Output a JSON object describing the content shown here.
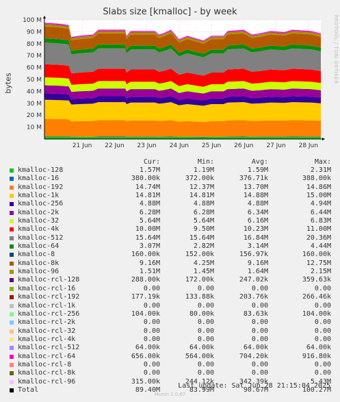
{
  "chart_data": {
    "type": "area",
    "title": "Slabs size [kmalloc] - by week",
    "ylabel": "bytes",
    "ylim": [
      0,
      100000000
    ],
    "y_ticks": [
      "10 M",
      "20 M",
      "30 M",
      "40 M",
      "50 M",
      "60 M",
      "70 M",
      "80 M",
      "90 M",
      "100 M"
    ],
    "x_ticks": [
      "21 Jun",
      "22 Jun",
      "23 Jun",
      "24 Jun",
      "25 Jun",
      "26 Jun",
      "27 Jun",
      "28 Jun"
    ],
    "x_range": [
      "2025-06-20T08:00",
      "2025-06-28T21:15"
    ],
    "grid": true,
    "watermark": "RRDTOOL / TOBI OETIKER",
    "legend_headers": [
      "Cur:",
      "Min:",
      "Avg:",
      "Max:"
    ],
    "series": [
      {
        "name": "kmalloc-128",
        "color": "#00cc00",
        "cur": "1.57M",
        "min": "1.19M",
        "avg": "1.59M",
        "max": "2.31M",
        "val": 1.59
      },
      {
        "name": "kmalloc-16",
        "color": "#0066b3",
        "cur": "380.00k",
        "min": "372.00k",
        "avg": "376.71k",
        "max": "388.00k",
        "val": 0.38
      },
      {
        "name": "kmalloc-192",
        "color": "#ff8000",
        "cur": "14.74M",
        "min": "12.37M",
        "avg": "13.70M",
        "max": "14.86M",
        "val": 13.7
      },
      {
        "name": "kmalloc-1k",
        "color": "#ffcc00",
        "cur": "14.81M",
        "min": "14.81M",
        "avg": "14.88M",
        "max": "15.00M",
        "val": 14.88
      },
      {
        "name": "kmalloc-256",
        "color": "#330099",
        "cur": "4.88M",
        "min": "4.88M",
        "avg": "4.88M",
        "max": "4.94M",
        "val": 4.88
      },
      {
        "name": "kmalloc-2k",
        "color": "#990099",
        "cur": "6.28M",
        "min": "6.28M",
        "avg": "6.34M",
        "max": "6.44M",
        "val": 6.34
      },
      {
        "name": "kmalloc-32",
        "color": "#ccff00",
        "cur": "5.64M",
        "min": "5.64M",
        "avg": "6.16M",
        "max": "6.83M",
        "val": 6.16
      },
      {
        "name": "kmalloc-4k",
        "color": "#ff0000",
        "cur": "10.00M",
        "min": "9.50M",
        "avg": "10.23M",
        "max": "11.00M",
        "val": 10.23
      },
      {
        "name": "kmalloc-512",
        "color": "#808080",
        "cur": "15.64M",
        "min": "15.64M",
        "avg": "16.84M",
        "max": "20.36M",
        "val": 16.84
      },
      {
        "name": "kmalloc-64",
        "color": "#008f00",
        "cur": "3.07M",
        "min": "2.82M",
        "avg": "3.14M",
        "max": "4.44M",
        "val": 3.14
      },
      {
        "name": "kmalloc-8",
        "color": "#00487d",
        "cur": "160.00k",
        "min": "152.00k",
        "avg": "156.97k",
        "max": "160.00k",
        "val": 0.16
      },
      {
        "name": "kmalloc-8k",
        "color": "#b35a00",
        "cur": "9.16M",
        "min": "4.25M",
        "avg": "9.16M",
        "max": "12.75M",
        "val": 9.16
      },
      {
        "name": "kmalloc-96",
        "color": "#b38f00",
        "cur": "1.51M",
        "min": "1.45M",
        "avg": "1.64M",
        "max": "2.15M",
        "val": 1.64
      },
      {
        "name": "kmalloc-rcl-128",
        "color": "#6b006b",
        "cur": "288.00k",
        "min": "172.00k",
        "avg": "247.02k",
        "max": "359.63k",
        "val": 0.25
      },
      {
        "name": "kmalloc-rcl-16",
        "color": "#8fb300",
        "cur": "0.00",
        "min": "0.00",
        "avg": "0.00",
        "max": "0.00",
        "val": 0
      },
      {
        "name": "kmalloc-rcl-192",
        "color": "#b30000",
        "cur": "177.19k",
        "min": "133.88k",
        "avg": "203.76k",
        "max": "266.46k",
        "val": 0.2
      },
      {
        "name": "kmalloc-rcl-1k",
        "color": "#bebebe",
        "cur": "0.00",
        "min": "0.00",
        "avg": "0.00",
        "max": "0.00",
        "val": 0
      },
      {
        "name": "kmalloc-rcl-256",
        "color": "#80ff80",
        "cur": "104.00k",
        "min": "80.00k",
        "avg": "83.63k",
        "max": "104.00k",
        "val": 0.08
      },
      {
        "name": "kmalloc-rcl-2k",
        "color": "#80c9ff",
        "cur": "0.00",
        "min": "0.00",
        "avg": "0.00",
        "max": "0.00",
        "val": 0
      },
      {
        "name": "kmalloc-rcl-32",
        "color": "#ffc080",
        "cur": "0.00",
        "min": "0.00",
        "avg": "0.00",
        "max": "0.00",
        "val": 0
      },
      {
        "name": "kmalloc-rcl-4k",
        "color": "#ffe680",
        "cur": "0.00",
        "min": "0.00",
        "avg": "0.00",
        "max": "0.00",
        "val": 0
      },
      {
        "name": "kmalloc-rcl-512",
        "color": "#aa80ff",
        "cur": "64.00k",
        "min": "64.00k",
        "avg": "64.00k",
        "max": "64.00k",
        "val": 0.06
      },
      {
        "name": "kmalloc-rcl-64",
        "color": "#ee00cc",
        "cur": "656.00k",
        "min": "564.00k",
        "avg": "704.20k",
        "max": "916.80k",
        "val": 0.7
      },
      {
        "name": "kmalloc-rcl-8",
        "color": "#ff8080",
        "cur": "0.00",
        "min": "0.00",
        "avg": "0.00",
        "max": "0.00",
        "val": 0
      },
      {
        "name": "kmalloc-rcl-8k",
        "color": "#666600",
        "cur": "0.00",
        "min": "0.00",
        "avg": "0.00",
        "max": "0.00",
        "val": 0
      },
      {
        "name": "kmalloc-rcl-96",
        "color": "#ffbfff",
        "cur": "315.00k",
        "min": "244.12k",
        "avg": "342.39k",
        "max": "5.43M",
        "val": 0.34
      }
    ],
    "total": {
      "name": "Total",
      "color": "#000000",
      "cur": "89.40M",
      "min": "83.99M",
      "avg": "90.67M",
      "max": "100.27M"
    },
    "total_profile": [
      {
        "x": "2025-06-20T08:00",
        "y": 98
      },
      {
        "x": "2025-06-20T20:00",
        "y": 97
      },
      {
        "x": "2025-06-21T02:00",
        "y": 96
      },
      {
        "x": "2025-06-21T04:00",
        "y": 86
      },
      {
        "x": "2025-06-21T10:00",
        "y": 87
      },
      {
        "x": "2025-06-21T20:00",
        "y": 88
      },
      {
        "x": "2025-06-22T00:00",
        "y": 92
      },
      {
        "x": "2025-06-22T20:00",
        "y": 92
      },
      {
        "x": "2025-06-22T21:00",
        "y": 87
      },
      {
        "x": "2025-06-23T00:00",
        "y": 91
      },
      {
        "x": "2025-06-23T18:00",
        "y": 91
      },
      {
        "x": "2025-06-23T21:00",
        "y": 88
      },
      {
        "x": "2025-06-24T00:00",
        "y": 89
      },
      {
        "x": "2025-06-24T06:00",
        "y": 92
      },
      {
        "x": "2025-06-24T12:00",
        "y": 84
      },
      {
        "x": "2025-06-24T18:00",
        "y": 87
      },
      {
        "x": "2025-06-25T00:00",
        "y": 85
      },
      {
        "x": "2025-06-25T06:00",
        "y": 83
      },
      {
        "x": "2025-06-25T12:00",
        "y": 87
      },
      {
        "x": "2025-06-25T21:00",
        "y": 87
      },
      {
        "x": "2025-06-26T00:00",
        "y": 91
      },
      {
        "x": "2025-06-26T12:00",
        "y": 92
      },
      {
        "x": "2025-06-26T18:00",
        "y": 88
      },
      {
        "x": "2025-06-27T00:00",
        "y": 89
      },
      {
        "x": "2025-06-27T08:00",
        "y": 91
      },
      {
        "x": "2025-06-27T18:00",
        "y": 90
      },
      {
        "x": "2025-06-28T00:00",
        "y": 92
      },
      {
        "x": "2025-06-28T14:00",
        "y": 91
      },
      {
        "x": "2025-06-28T21:15",
        "y": 89
      }
    ]
  },
  "last_update": "Last update: Sat Jun 28 21:15:04 2025",
  "footer": "Munin 2.0.67"
}
